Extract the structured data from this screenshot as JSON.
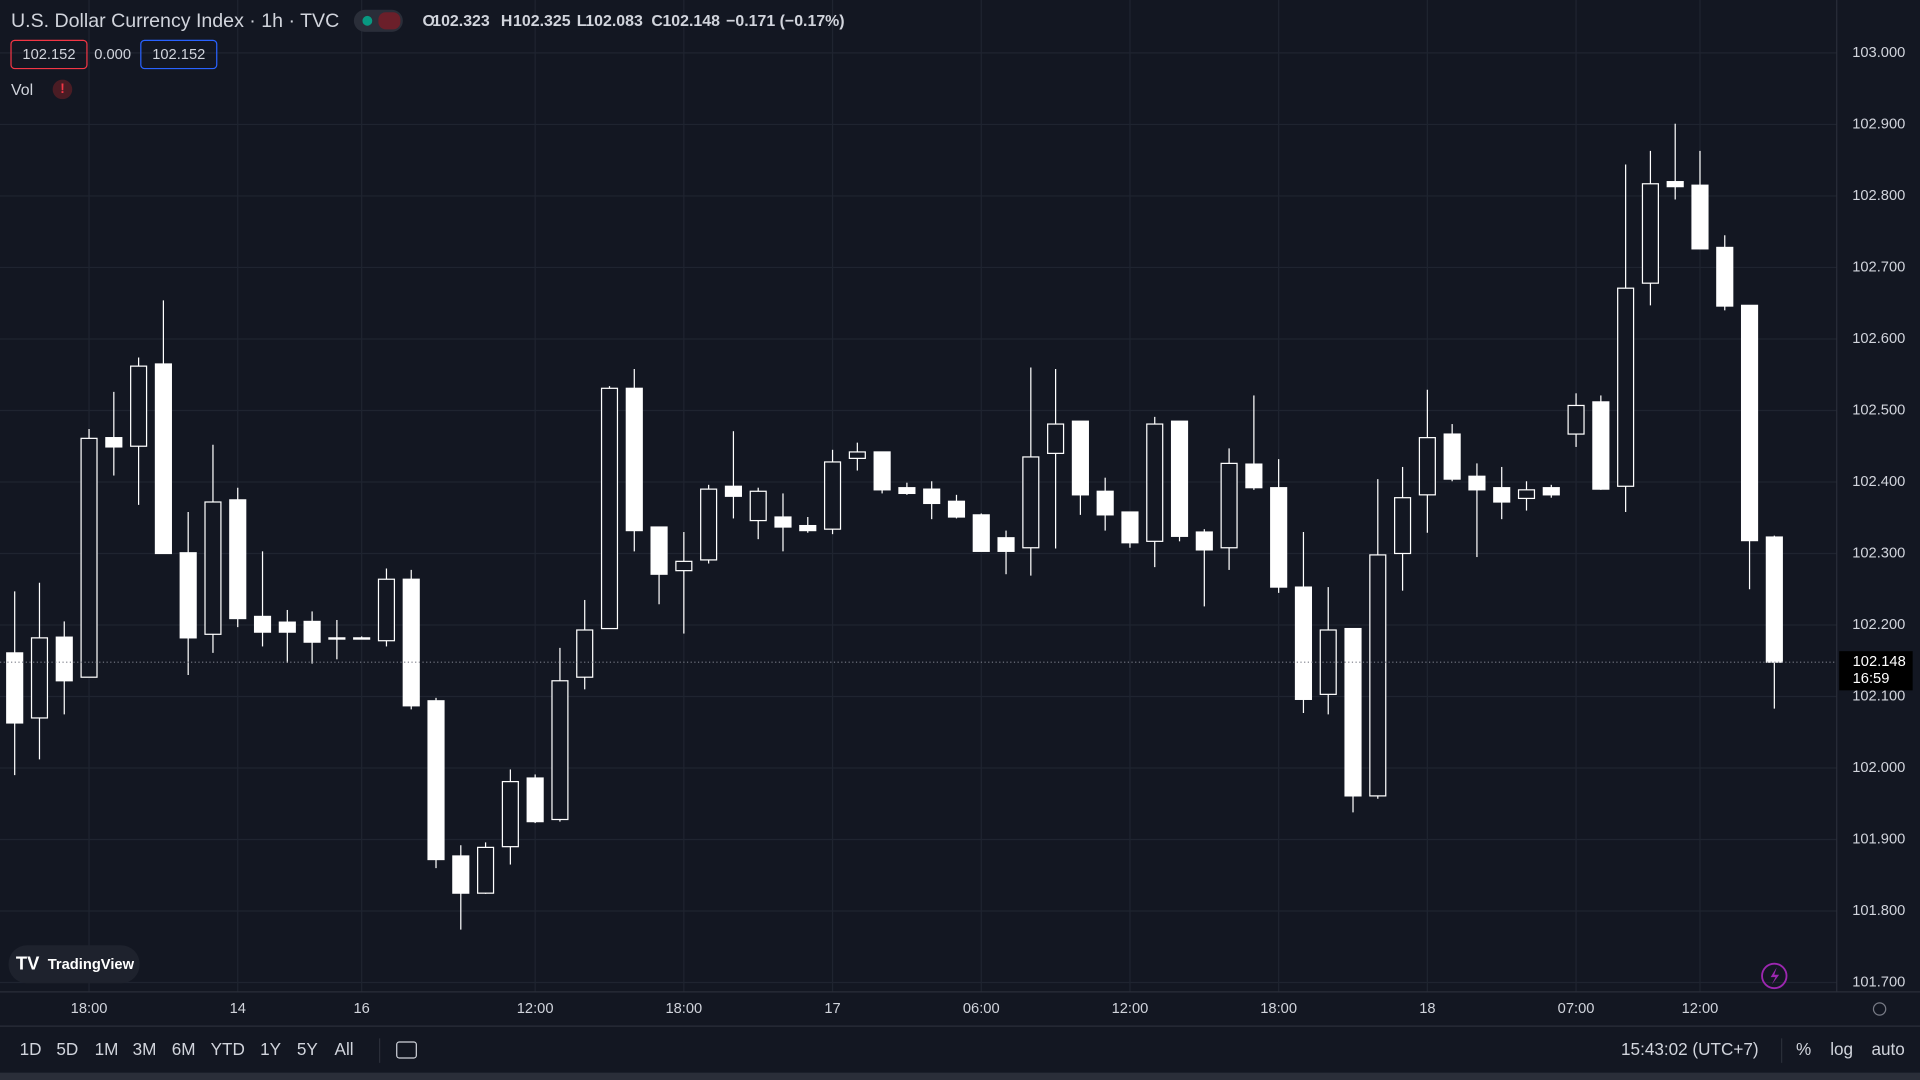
{
  "header": {
    "title": "U.S. Dollar Currency Index · 1h · TVC",
    "ohlc_prefix": [
      "O",
      "H",
      "L",
      "C"
    ],
    "change": "−0.171 (−0.17%)",
    "bid": "102.152",
    "spread": "0.000",
    "ask": "102.152",
    "indicator": "Vol",
    "alert": "!"
  },
  "price_axis": {
    "countdown": "16:59"
  },
  "logo": "TradingView",
  "toolbar": {
    "ranges": [
      "1D",
      "5D",
      "1M",
      "3M",
      "6M",
      "YTD",
      "1Y",
      "5Y",
      "All"
    ],
    "clock": "15:43:02 (UTC+7)",
    "options": [
      "%",
      "log",
      "auto"
    ]
  },
  "chart_data": {
    "type": "candlestick",
    "categories": [
      null,
      null,
      null,
      "18:00",
      null,
      null,
      null,
      null,
      null,
      "14",
      null,
      null,
      null,
      null,
      "16",
      null,
      null,
      null,
      null,
      null,
      null,
      "12:00",
      null,
      null,
      null,
      null,
      null,
      "18:00",
      null,
      null,
      null,
      null,
      null,
      "17",
      null,
      null,
      null,
      null,
      null,
      "06:00",
      null,
      null,
      null,
      null,
      null,
      "12:00",
      null,
      null,
      null,
      null,
      null,
      "18:00",
      null,
      null,
      null,
      null,
      null,
      "18",
      null,
      null,
      null,
      null,
      null,
      "07:00",
      null,
      null,
      null,
      null,
      "12:00",
      null,
      null,
      null
    ],
    "open": [
      102.161,
      102.07,
      102.183,
      102.127,
      102.462,
      102.45,
      102.565,
      102.301,
      102.187,
      102.375,
      102.212,
      102.204,
      102.205,
      102.182,
      102.182,
      102.178,
      102.264,
      102.094,
      101.877,
      101.825,
      101.89,
      101.986,
      101.928,
      102.127,
      102.195,
      102.531,
      102.337,
      102.276,
      102.291,
      102.394,
      102.346,
      102.351,
      102.339,
      102.334,
      102.433,
      102.442,
      102.392,
      102.39,
      102.373,
      102.354,
      102.322,
      102.308,
      102.44,
      102.485,
      102.387,
      102.358,
      102.317,
      102.485,
      102.33,
      102.308,
      102.425,
      102.392,
      102.253,
      102.103,
      102.195,
      101.961,
      102.3,
      102.382,
      102.467,
      102.408,
      102.392,
      102.377,
      102.392,
      102.467,
      102.512,
      102.394,
      102.678,
      102.82,
      102.815,
      102.728,
      102.647,
      102.323
    ],
    "high": [
      102.247,
      102.259,
      102.205,
      102.474,
      102.526,
      102.574,
      102.654,
      102.358,
      102.452,
      102.392,
      102.303,
      102.221,
      102.219,
      102.207,
      102.184,
      102.279,
      102.277,
      102.098,
      101.892,
      101.896,
      101.998,
      101.991,
      102.168,
      102.235,
      102.534,
      102.558,
      102.337,
      102.33,
      102.396,
      102.471,
      102.392,
      102.384,
      102.351,
      102.445,
      102.455,
      102.442,
      102.399,
      102.401,
      102.382,
      102.356,
      102.332,
      102.56,
      102.558,
      102.485,
      102.406,
      102.358,
      102.491,
      102.485,
      102.334,
      102.447,
      102.521,
      102.432,
      102.33,
      102.253,
      102.195,
      102.404,
      102.421,
      102.529,
      102.481,
      102.426,
      102.421,
      102.401,
      102.396,
      102.524,
      102.521,
      102.844,
      102.863,
      102.901,
      102.863,
      102.745,
      102.647,
      102.325
    ],
    "low": [
      101.99,
      102.012,
      102.075,
      102.127,
      102.409,
      102.368,
      102.3,
      102.13,
      102.161,
      102.197,
      102.17,
      102.147,
      102.146,
      102.152,
      102.182,
      102.17,
      102.082,
      101.86,
      101.774,
      101.824,
      101.865,
      101.923,
      101.925,
      102.11,
      102.195,
      102.303,
      102.229,
      102.188,
      102.286,
      102.349,
      102.32,
      102.303,
      102.329,
      102.327,
      102.416,
      102.384,
      102.382,
      102.348,
      102.349,
      102.303,
      102.271,
      102.269,
      102.307,
      102.354,
      102.332,
      102.308,
      102.281,
      102.317,
      102.226,
      102.277,
      102.389,
      102.245,
      102.077,
      102.075,
      101.938,
      101.957,
      102.248,
      102.329,
      102.401,
      102.295,
      102.348,
      102.36,
      102.378,
      102.449,
      102.389,
      102.358,
      102.647,
      102.795,
      102.726,
      102.64,
      102.25,
      102.083
    ],
    "close": [
      102.063,
      102.182,
      102.122,
      102.461,
      102.449,
      102.562,
      102.3,
      102.182,
      102.372,
      102.209,
      102.19,
      102.19,
      102.176,
      102.182,
      102.182,
      102.264,
      102.087,
      101.872,
      101.825,
      101.889,
      101.981,
      101.925,
      102.122,
      102.193,
      102.531,
      102.332,
      102.271,
      102.289,
      102.39,
      102.38,
      102.387,
      102.337,
      102.332,
      102.428,
      102.442,
      102.389,
      102.384,
      102.37,
      102.351,
      102.303,
      102.303,
      102.435,
      102.481,
      102.382,
      102.354,
      102.315,
      102.481,
      102.324,
      102.305,
      102.426,
      102.392,
      102.253,
      102.096,
      102.193,
      101.961,
      102.298,
      102.378,
      102.462,
      102.404,
      102.389,
      102.372,
      102.389,
      102.382,
      102.507,
      102.39,
      102.671,
      102.817,
      102.813,
      102.726,
      102.646,
      102.318,
      102.148
    ],
    "colors": {
      "up": "#131722",
      "down": "#ffffff",
      "border": "#ffffff"
    },
    "ylim": [
      101.687,
      103.074
    ],
    "yticks": [
      {
        "value": 101.7,
        "label": "101.700"
      },
      {
        "value": 101.8,
        "label": "101.800"
      },
      {
        "value": 101.9,
        "label": "101.900"
      },
      {
        "value": 102.0,
        "label": "102.000"
      },
      {
        "value": 102.1,
        "label": "102.100"
      },
      {
        "value": 102.2,
        "label": "102.200"
      },
      {
        "value": 102.3,
        "label": "102.300"
      },
      {
        "value": 102.4,
        "label": "102.400"
      },
      {
        "value": 102.5,
        "label": "102.500"
      },
      {
        "value": 102.6,
        "label": "102.600"
      },
      {
        "value": 102.7,
        "label": "102.700"
      },
      {
        "value": 102.8,
        "label": "102.800"
      },
      {
        "value": 102.9,
        "label": "102.900"
      },
      {
        "value": 103.0,
        "label": "103.000"
      }
    ],
    "grid": true
  }
}
